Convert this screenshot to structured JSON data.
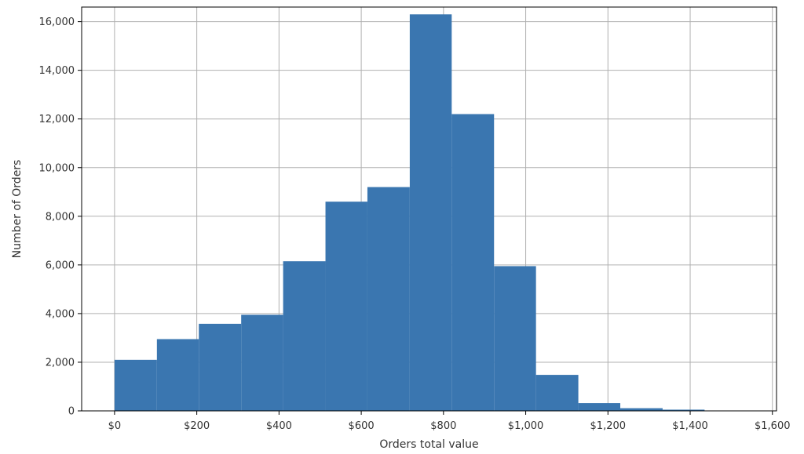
{
  "chart_data": {
    "type": "bar",
    "title": "",
    "xlabel": "Orders total value",
    "ylabel": "Number of Orders",
    "bar_color": "#3a76b0",
    "grid": true,
    "xlim": [
      -80,
      1610
    ],
    "ylim": [
      0,
      16600
    ],
    "x_ticks": [
      {
        "value": 0,
        "label": "$0"
      },
      {
        "value": 200,
        "label": "$200"
      },
      {
        "value": 400,
        "label": "$400"
      },
      {
        "value": 600,
        "label": "$600"
      },
      {
        "value": 800,
        "label": "$800"
      },
      {
        "value": 1000,
        "label": "$1,000"
      },
      {
        "value": 1200,
        "label": "$1,200"
      },
      {
        "value": 1400,
        "label": "$1,400"
      },
      {
        "value": 1600,
        "label": "$1,600"
      }
    ],
    "y_ticks": [
      {
        "value": 0,
        "label": "0"
      },
      {
        "value": 2000,
        "label": "2,000"
      },
      {
        "value": 4000,
        "label": "4,000"
      },
      {
        "value": 6000,
        "label": "6,000"
      },
      {
        "value": 8000,
        "label": "8,000"
      },
      {
        "value": 10000,
        "label": "10,000"
      },
      {
        "value": 12000,
        "label": "12,000"
      },
      {
        "value": 14000,
        "label": "14,000"
      },
      {
        "value": 16000,
        "label": "16,000"
      }
    ],
    "bins": [
      {
        "x0": 0,
        "x1": 103,
        "count": 2100
      },
      {
        "x0": 103,
        "x1": 205,
        "count": 2950
      },
      {
        "x0": 205,
        "x1": 308,
        "count": 3580
      },
      {
        "x0": 308,
        "x1": 410,
        "count": 3950
      },
      {
        "x0": 410,
        "x1": 513,
        "count": 6150
      },
      {
        "x0": 513,
        "x1": 615,
        "count": 8600
      },
      {
        "x0": 615,
        "x1": 718,
        "count": 9200
      },
      {
        "x0": 718,
        "x1": 820,
        "count": 16300
      },
      {
        "x0": 820,
        "x1": 923,
        "count": 12200
      },
      {
        "x0": 923,
        "x1": 1025,
        "count": 5950
      },
      {
        "x0": 1025,
        "x1": 1128,
        "count": 1480
      },
      {
        "x0": 1128,
        "x1": 1230,
        "count": 320
      },
      {
        "x0": 1230,
        "x1": 1333,
        "count": 110
      },
      {
        "x0": 1333,
        "x1": 1435,
        "count": 50
      },
      {
        "x0": 1435,
        "x1": 1538,
        "count": 10
      }
    ]
  }
}
